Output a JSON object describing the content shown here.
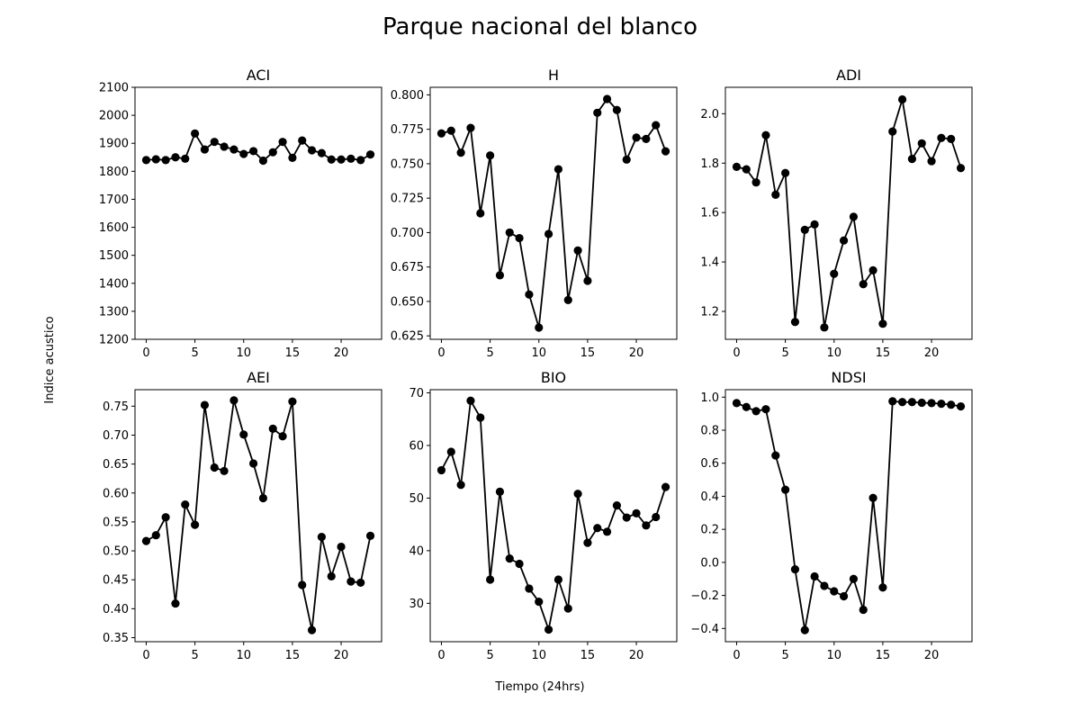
{
  "figure": {
    "title": "Parque nacional del blanco",
    "xlabel": "Tiempo (24hrs)",
    "ylabel": "Indice acustico"
  },
  "chart_data": [
    {
      "type": "line",
      "title": "ACI",
      "x": [
        0,
        1,
        2,
        3,
        4,
        5,
        6,
        7,
        8,
        9,
        10,
        11,
        12,
        13,
        14,
        15,
        16,
        17,
        18,
        19,
        20,
        21,
        22,
        23
      ],
      "series": [
        {
          "values": [
            1840,
            1843,
            1840,
            1850,
            1845,
            1935,
            1878,
            1905,
            1888,
            1878,
            1862,
            1872,
            1838,
            1868,
            1905,
            1848,
            1910,
            1875,
            1865,
            1842,
            1842,
            1845,
            1840,
            1860
          ]
        }
      ],
      "xlim": [
        -1.15,
        24.15
      ],
      "ylim": [
        1200,
        2100
      ],
      "xticks": [
        0,
        5,
        10,
        15,
        20
      ],
      "yticks": [
        1200,
        1300,
        1400,
        1500,
        1600,
        1700,
        1800,
        1900,
        2000,
        2100
      ],
      "ytick_labels": [
        "1200",
        "1300",
        "1400",
        "1500",
        "1600",
        "1700",
        "1800",
        "1900",
        "2000",
        "2100"
      ],
      "color": "#000000"
    },
    {
      "type": "line",
      "title": "H",
      "x": [
        0,
        1,
        2,
        3,
        4,
        5,
        6,
        7,
        8,
        9,
        10,
        11,
        12,
        13,
        14,
        15,
        16,
        17,
        18,
        19,
        20,
        21,
        22,
        23
      ],
      "series": [
        {
          "values": [
            0.772,
            0.774,
            0.758,
            0.776,
            0.714,
            0.756,
            0.669,
            0.7,
            0.696,
            0.655,
            0.631,
            0.699,
            0.746,
            0.651,
            0.687,
            0.665,
            0.787,
            0.797,
            0.789,
            0.753,
            0.769,
            0.768,
            0.778,
            0.759
          ]
        }
      ],
      "xlim": [
        -1.15,
        24.15
      ],
      "ylim": [
        0.6225,
        0.8055
      ],
      "xticks": [
        0,
        5,
        10,
        15,
        20
      ],
      "yticks": [
        0.625,
        0.65,
        0.675,
        0.7,
        0.725,
        0.75,
        0.775,
        0.8
      ],
      "ytick_labels": [
        "0.625",
        "0.650",
        "0.675",
        "0.700",
        "0.725",
        "0.750",
        "0.775",
        "0.800"
      ],
      "color": "#000000"
    },
    {
      "type": "line",
      "title": "ADI",
      "x": [
        0,
        1,
        2,
        3,
        4,
        5,
        6,
        7,
        8,
        9,
        10,
        11,
        12,
        13,
        14,
        15,
        16,
        17,
        18,
        19,
        20,
        21,
        22,
        23
      ],
      "series": [
        {
          "values": [
            1.785,
            1.775,
            1.722,
            1.913,
            1.672,
            1.76,
            1.157,
            1.53,
            1.552,
            1.135,
            1.352,
            1.487,
            1.583,
            1.31,
            1.366,
            1.15,
            1.928,
            2.058,
            1.817,
            1.88,
            1.808,
            1.902,
            1.898,
            1.78
          ]
        }
      ],
      "xlim": [
        -1.15,
        24.15
      ],
      "ylim": [
        1.087,
        2.107
      ],
      "xticks": [
        0,
        5,
        10,
        15,
        20
      ],
      "yticks": [
        1.2,
        1.4,
        1.6,
        1.8,
        2.0
      ],
      "ytick_labels": [
        "1.2",
        "1.4",
        "1.6",
        "1.8",
        "2.0"
      ],
      "color": "#000000"
    },
    {
      "type": "line",
      "title": "AEI",
      "x": [
        0,
        1,
        2,
        3,
        4,
        5,
        6,
        7,
        8,
        9,
        10,
        11,
        12,
        13,
        14,
        15,
        16,
        17,
        18,
        19,
        20,
        21,
        22,
        23
      ],
      "series": [
        {
          "values": [
            0.517,
            0.527,
            0.558,
            0.409,
            0.58,
            0.545,
            0.752,
            0.644,
            0.638,
            0.76,
            0.701,
            0.651,
            0.591,
            0.711,
            0.698,
            0.758,
            0.441,
            0.363,
            0.524,
            0.456,
            0.507,
            0.447,
            0.445,
            0.526
          ]
        }
      ],
      "xlim": [
        -1.15,
        24.15
      ],
      "ylim": [
        0.343,
        0.7785
      ],
      "xticks": [
        0,
        5,
        10,
        15,
        20
      ],
      "yticks": [
        0.35,
        0.4,
        0.45,
        0.5,
        0.55,
        0.6,
        0.65,
        0.7,
        0.75
      ],
      "ytick_labels": [
        "0.35",
        "0.40",
        "0.45",
        "0.50",
        "0.55",
        "0.60",
        "0.65",
        "0.70",
        "0.75"
      ],
      "color": "#000000"
    },
    {
      "type": "line",
      "title": "BIO",
      "x": [
        0,
        1,
        2,
        3,
        4,
        5,
        6,
        7,
        8,
        9,
        10,
        11,
        12,
        13,
        14,
        15,
        16,
        17,
        18,
        19,
        20,
        21,
        22,
        23
      ],
      "series": [
        {
          "values": [
            55.3,
            58.8,
            52.5,
            68.5,
            65.3,
            34.5,
            51.2,
            38.5,
            37.5,
            32.8,
            30.3,
            25.0,
            34.5,
            29.0,
            50.8,
            41.5,
            44.3,
            43.6,
            48.6,
            46.3,
            47.1,
            44.8,
            46.4,
            52.1
          ]
        }
      ],
      "xlim": [
        -1.15,
        24.15
      ],
      "ylim": [
        22.7,
        70.6
      ],
      "xticks": [
        0,
        5,
        10,
        15,
        20
      ],
      "yticks": [
        30,
        40,
        50,
        60,
        70
      ],
      "ytick_labels": [
        "30",
        "40",
        "50",
        "60",
        "70"
      ],
      "color": "#000000"
    },
    {
      "type": "line",
      "title": "NDSI",
      "x": [
        0,
        1,
        2,
        3,
        4,
        5,
        6,
        7,
        8,
        9,
        10,
        11,
        12,
        13,
        14,
        15,
        16,
        17,
        18,
        19,
        20,
        21,
        22,
        23
      ],
      "series": [
        {
          "values": [
            0.964,
            0.94,
            0.915,
            0.927,
            0.647,
            0.44,
            -0.042,
            -0.41,
            -0.085,
            -0.142,
            -0.175,
            -0.205,
            -0.1,
            -0.287,
            0.39,
            -0.152,
            0.975,
            0.97,
            0.97,
            0.966,
            0.964,
            0.96,
            0.954,
            0.944
          ]
        }
      ],
      "xlim": [
        -1.15,
        24.15
      ],
      "ylim": [
        -0.48,
        1.045
      ],
      "xticks": [
        0,
        5,
        10,
        15,
        20
      ],
      "yticks": [
        -0.4,
        -0.2,
        0.0,
        0.2,
        0.4,
        0.6,
        0.8,
        1.0
      ],
      "ytick_labels": [
        "−0.4",
        "−0.2",
        "0.0",
        "0.2",
        "0.4",
        "0.6",
        "0.8",
        "1.0"
      ],
      "color": "#000000"
    }
  ]
}
